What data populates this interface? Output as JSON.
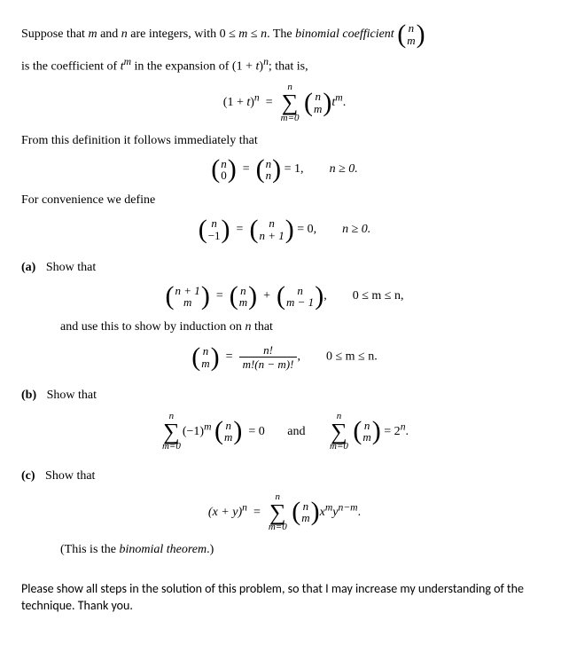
{
  "intro": {
    "l1a": "Suppose that ",
    "l1b": " and ",
    "l1c": " are integers, with 0 ≤ ",
    "l1d": " ≤ ",
    "l1e": ". The ",
    "term": "binomial coefficient",
    "bi_top": "n",
    "bi_bot": "m",
    "l2a": "is the coefficient of ",
    "l2b": " in the expansion of (1 + ",
    "l2c": ")",
    "l2d": "; that is,"
  },
  "eq1": {
    "lhs_a": "(1 + ",
    "lhs_b": ")",
    "sum_top": "n",
    "sum_bot": "m=0",
    "bin_top": "n",
    "bin_bot": "m",
    "tail": "."
  },
  "line3": "From this definition it follows immediately that",
  "eq2": {
    "b1_top": "n",
    "b1_bot": "0",
    "b2_top": "n",
    "b2_bot": "n",
    "rhs": " = 1,",
    "cond": "n ≥ 0."
  },
  "line4": "For convenience we define",
  "eq3": {
    "b1_top": "n",
    "b1_bot": "−1",
    "b2_top": "n",
    "b2_bot": "n + 1",
    "rhs": " = 0,",
    "cond": "n ≥ 0."
  },
  "partA": {
    "label": "(a)",
    "text1": "Show that",
    "eqL_top": "n + 1",
    "eqL_bot": "m",
    "eqM_top": "n",
    "eqM_bot": "m",
    "eqR_top": "n",
    "eqR_bot": "m − 1",
    "cond": "0 ≤ m ≤ n,",
    "text2": "and use this to show by induction on ",
    "text2b": " that",
    "eq2_top": "n",
    "eq2_bot": "m",
    "frac_num": "n!",
    "frac_den": "m!(n − m)!",
    "cond2": "0 ≤ m ≤ n."
  },
  "partB": {
    "label": "(b)",
    "text": "Show that",
    "sum_top": "n",
    "sum_bot": "m=0",
    "b_top": "n",
    "b_bot": "m",
    "mid": "and",
    "rhs2": " = 2"
  },
  "partC": {
    "label": "(c)",
    "text": "Show that",
    "lhs": "(x + y)",
    "sum_top": "n",
    "sum_bot": "m=0",
    "b_top": "n",
    "b_bot": "m",
    "note_a": "(This is the ",
    "note_term": "binomial theorem",
    "note_b": ".)"
  },
  "footer": "Please show all steps in the solution of this problem, so that I may increase my understanding of the technique.  Thank you."
}
